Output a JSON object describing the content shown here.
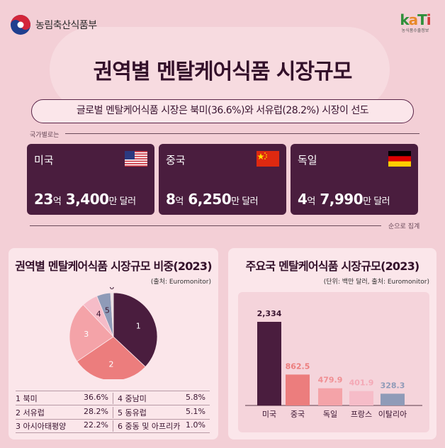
{
  "header": {
    "gov_name": "농림축산식품부",
    "kati_mark": "kaTi",
    "kati_sub": "농식품수출정보"
  },
  "title": "권역별 멘탈케어식품 시장규모",
  "subtitle": "글로벌 멘탈케어식품 시장은 북미(36.6%)와 서유럽(28.2%) 시장이 선도",
  "by_country_label": "국가별로는",
  "order_note": "순으로 집계",
  "cards": [
    {
      "name": "미국",
      "big1": "23",
      "u1": "억",
      "big2": " 3,400",
      "u2": "만 달러",
      "flag": "us-flag"
    },
    {
      "name": "중국",
      "big1": "8",
      "u1": "억",
      "big2": " 6,250",
      "u2": "만 달러",
      "flag": "china-flag"
    },
    {
      "name": "독일",
      "big1": "4",
      "u1": "억",
      "big2": " 7,990",
      "u2": "만 달러",
      "flag": "germany-flag"
    }
  ],
  "colors": {
    "dark": "#4a1d3e",
    "pie": [
      "#4a1d3e",
      "#ec7d7d",
      "#f4a3a8",
      "#f6bcc8",
      "#8f9bb8",
      "#e6e0e2"
    ],
    "bars": [
      "#4a1d3e",
      "#ec7d7d",
      "#f4a3a8",
      "#f6bcc8",
      "#8f9bb8"
    ]
  },
  "chart_data": [
    {
      "type": "pie",
      "title": "권역별 멘탈케어식품 시장규모 비중(2023)",
      "source": "(출처: Euromonitor)",
      "slice_labels": [
        "1",
        "2",
        "3",
        "4",
        "5",
        "6"
      ],
      "categories": [
        "북미",
        "서유럽",
        "아시아태평양",
        "중남미",
        "동유럽",
        "중동 및 아프리카"
      ],
      "values": [
        36.6,
        28.2,
        22.2,
        5.8,
        5.1,
        1.0
      ],
      "value_labels": [
        "36.6%",
        "28.2%",
        "22.2%",
        "5.8%",
        "5.1%",
        "1.0%"
      ]
    },
    {
      "type": "bar",
      "title": "주요국 멘탈케어식품 시장규모(2023)",
      "source": "(단위: 백만 달러, 출처: Euromonitor)",
      "categories": [
        "미국",
        "중국",
        "독일",
        "프랑스",
        "이탈리아"
      ],
      "values": [
        2334,
        862.5,
        479.9,
        401.9,
        328.3
      ],
      "value_labels": [
        "2,334",
        "862.5",
        "479.9",
        "401.9",
        "328.3"
      ],
      "ylim": [
        0,
        2500
      ]
    }
  ]
}
